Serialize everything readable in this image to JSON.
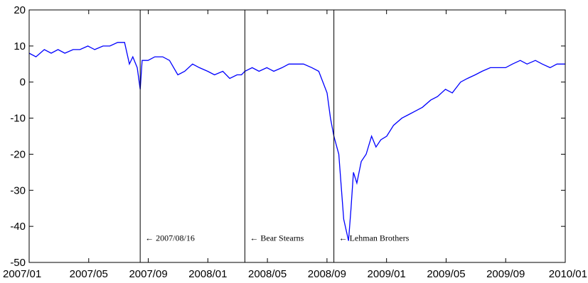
{
  "chart_data": {
    "type": "line",
    "title": "",
    "xlabel": "",
    "ylabel": "",
    "xlim": [
      "2007-01-01",
      "2010-01-01"
    ],
    "ylim": [
      -50,
      20
    ],
    "x_ticks": [
      "2007/01",
      "2007/05",
      "2007/09",
      "2008/01",
      "2008/05",
      "2008/09",
      "2009/01",
      "2009/05",
      "2009/09",
      "2010/01"
    ],
    "y_ticks": [
      20,
      10,
      0,
      -10,
      -20,
      -30,
      -40,
      -50
    ],
    "grid": false,
    "line_color": "#0000ff",
    "series": [
      {
        "x": [
          "2007-01-01",
          "2007-01-15",
          "2007-02-01",
          "2007-02-15",
          "2007-03-01",
          "2007-03-15",
          "2007-04-01",
          "2007-04-15",
          "2007-05-01",
          "2007-05-15",
          "2007-06-01",
          "2007-06-15",
          "2007-07-01",
          "2007-07-15",
          "2007-07-25",
          "2007-08-01",
          "2007-08-10",
          "2007-08-16",
          "2007-08-20",
          "2007-09-01",
          "2007-09-15",
          "2007-10-01",
          "2007-10-15",
          "2007-11-01",
          "2007-11-15",
          "2007-12-01",
          "2007-12-15",
          "2008-01-01",
          "2008-01-15",
          "2008-02-01",
          "2008-02-15",
          "2008-03-01",
          "2008-03-10",
          "2008-03-17",
          "2008-04-01",
          "2008-04-15",
          "2008-05-01",
          "2008-05-15",
          "2008-06-01",
          "2008-06-15",
          "2008-07-01",
          "2008-07-15",
          "2008-08-01",
          "2008-08-15",
          "2008-09-01",
          "2008-09-08",
          "2008-09-15",
          "2008-09-25",
          "2008-10-05",
          "2008-10-15",
          "2008-10-20",
          "2008-10-25",
          "2008-11-01",
          "2008-11-10",
          "2008-11-20",
          "2008-12-01",
          "2008-12-10",
          "2008-12-20",
          "2009-01-01",
          "2009-01-15",
          "2009-02-01",
          "2009-02-15",
          "2009-03-01",
          "2009-03-15",
          "2009-04-01",
          "2009-04-15",
          "2009-05-01",
          "2009-05-15",
          "2009-06-01",
          "2009-06-15",
          "2009-07-01",
          "2009-07-15",
          "2009-08-01",
          "2009-08-15",
          "2009-09-01",
          "2009-09-15",
          "2009-10-01",
          "2009-10-15",
          "2009-11-01",
          "2009-11-15",
          "2009-12-01",
          "2009-12-15",
          "2010-01-01"
        ],
        "y": [
          8,
          7,
          9,
          8,
          9,
          8,
          9,
          9,
          10,
          9,
          10,
          10,
          11,
          11,
          5,
          7,
          4,
          -2,
          6,
          6,
          7,
          7,
          6,
          2,
          3,
          5,
          4,
          3,
          2,
          3,
          1,
          2,
          2,
          3,
          4,
          3,
          4,
          3,
          4,
          5,
          5,
          5,
          4,
          3,
          -3,
          -10,
          -15,
          -20,
          -38,
          -44,
          -35,
          -25,
          -28,
          -22,
          -20,
          -15,
          -18,
          -16,
          -15,
          -12,
          -10,
          -9,
          -8,
          -7,
          -5,
          -4,
          -2,
          -3,
          0,
          1,
          2,
          3,
          4,
          4,
          4,
          5,
          6,
          5,
          6,
          5,
          4,
          5,
          5
        ]
      }
    ],
    "events": [
      {
        "date": "2007-08-16",
        "label": "← 2007/08/16"
      },
      {
        "date": "2008-03-17",
        "label": "← Bear Stearns"
      },
      {
        "date": "2008-09-15",
        "label": "← Lehman Brothers"
      }
    ]
  }
}
